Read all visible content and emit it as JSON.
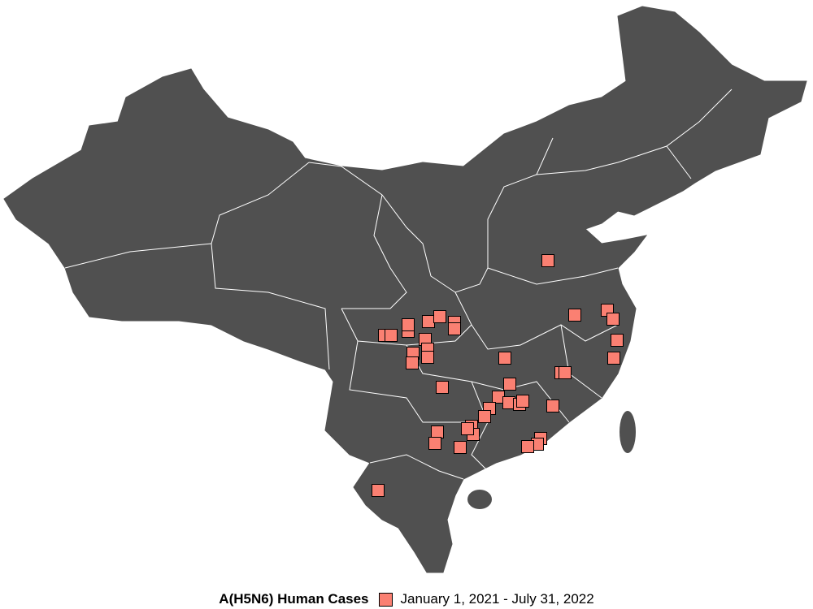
{
  "map": {
    "land_color": "#505050",
    "border_color": "#ffffff",
    "marker_color": "#FA8072",
    "marker_shape": "square"
  },
  "legend": {
    "title": "A(H5N6) Human Cases",
    "entries": [
      {
        "label": "January 1, 2021 - July 31, 2022",
        "color": "#FA8072",
        "shape": "square"
      }
    ]
  }
}
